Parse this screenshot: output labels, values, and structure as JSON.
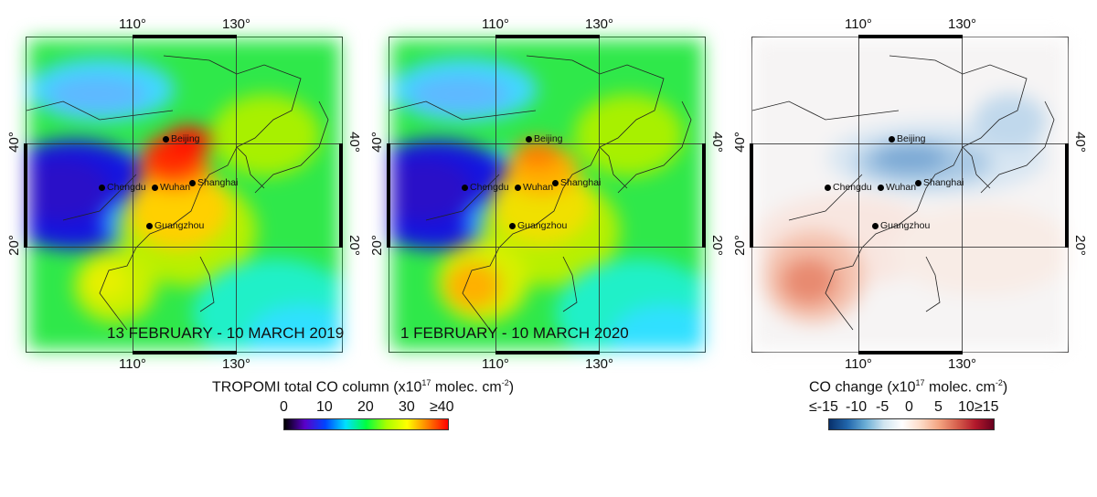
{
  "axes": {
    "lon_labels": [
      "110°",
      "130°"
    ],
    "lat_labels": [
      "40°",
      "20°"
    ]
  },
  "cities": [
    "Beijing",
    "Chengdu",
    "Wuhan",
    "Shanghai",
    "Guangzhou"
  ],
  "panels": [
    {
      "date_label": "13 FEBRUARY - 10 MARCH 2019"
    },
    {
      "date_label": "1 FEBRUARY - 10 MARCH 2020"
    },
    {
      "date_label": ""
    }
  ],
  "colorbars": [
    {
      "title_main": "TROPOMI total CO column (x10",
      "title_exp": "17",
      "title_unit": " molec. cm",
      "title_unit_exp": "-2",
      "title_close": ")",
      "ticks": [
        "0",
        "10",
        "20",
        "30",
        "≥40"
      ],
      "colormap": "rainbow",
      "colors": [
        "#000000",
        "#5a00c8",
        "#0044ff",
        "#00e0ff",
        "#00ff40",
        "#a8ff00",
        "#ffff00",
        "#ff8000",
        "#ff0000"
      ]
    },
    {
      "title_main": "CO change (x10",
      "title_exp": "17",
      "title_unit": " molec. cm",
      "title_unit_exp": "-2",
      "title_close": ")",
      "ticks": [
        "≤-15",
        "-10",
        "-5",
        "0",
        "5",
        "10",
        "≥15"
      ],
      "colormap": "diverging red-blue",
      "colors": [
        "#08306b",
        "#2166ac",
        "#6baed6",
        "#d1e5f0",
        "#ffffff",
        "#fddbc7",
        "#f4a582",
        "#d6604d",
        "#b2182b",
        "#67001f"
      ]
    }
  ]
}
